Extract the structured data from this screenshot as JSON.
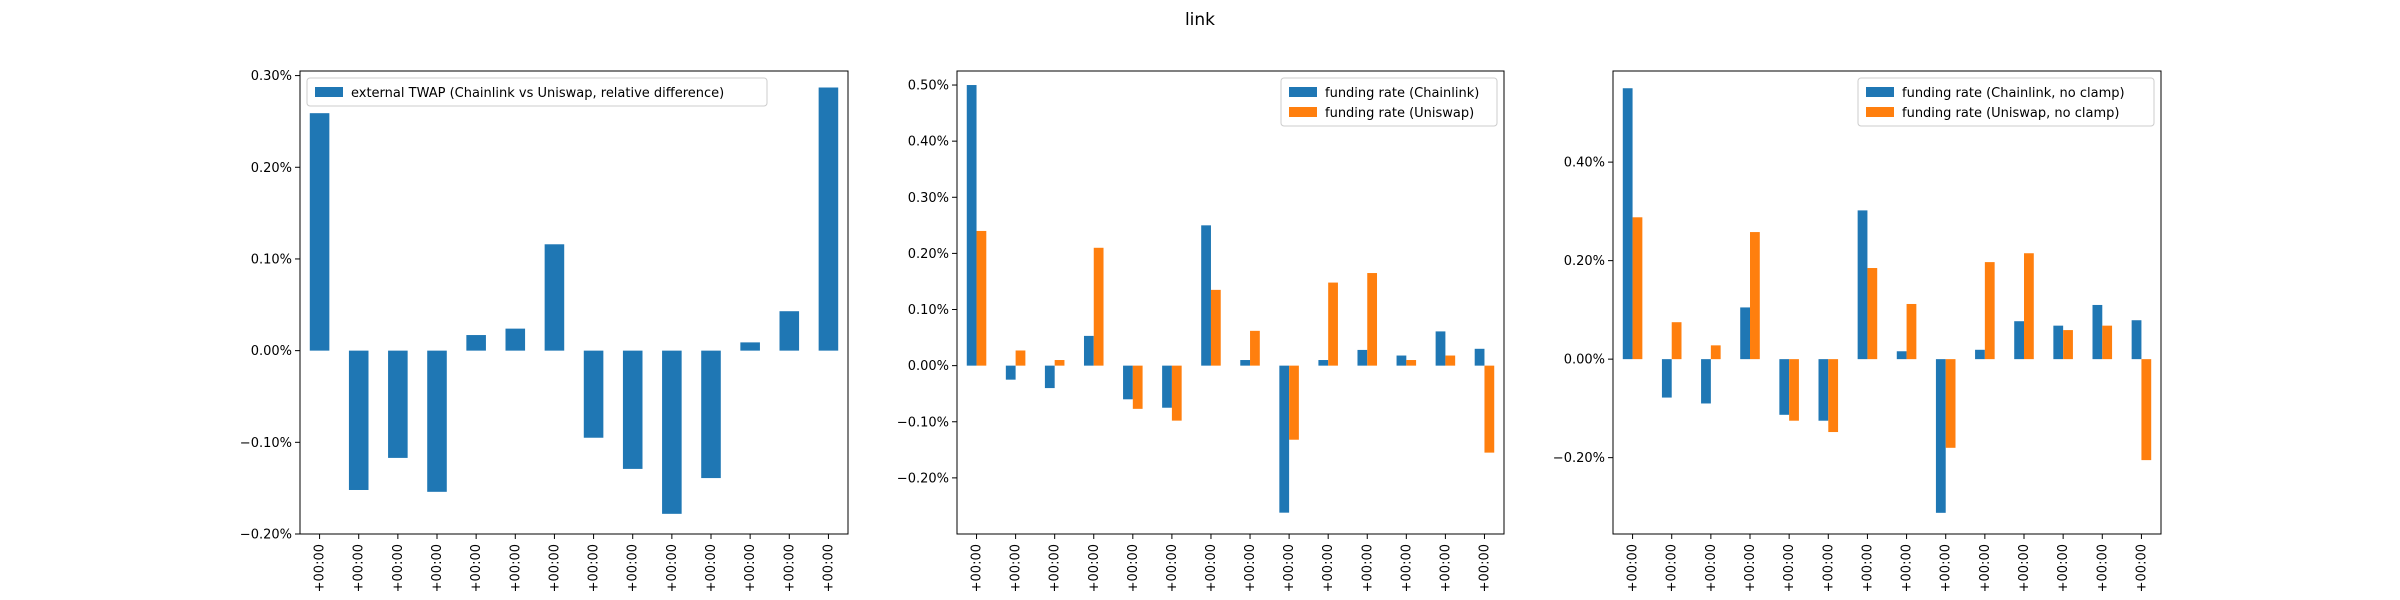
{
  "figure": {
    "title": "link"
  },
  "colors": {
    "blue": "#1f77b4",
    "orange": "#ff7f0e"
  },
  "chart_data": [
    {
      "type": "bar",
      "categories": [
        "+00:00",
        "+00:00",
        "+00:00",
        "+00:00",
        "+00:00",
        "+00:00",
        "+00:00",
        "+00:00",
        "+00:00",
        "+00:00",
        "+00:00",
        "+00:00",
        "+00:00",
        "+00:00"
      ],
      "series": [
        {
          "name": "external TWAP (Chainlink vs Uniswap, relative difference)",
          "color": "#1f77b4",
          "values": [
            0.00259,
            -0.00152,
            -0.00117,
            -0.00154,
            0.00017,
            0.00024,
            0.00116,
            -0.00095,
            -0.00129,
            -0.00178,
            -0.00139,
            9e-05,
            0.00043,
            0.00287
          ]
        }
      ],
      "yticks": [
        -0.002,
        -0.001,
        0.0,
        0.001,
        0.002,
        0.003
      ],
      "ytick_labels": [
        "−0.20%",
        "−0.10%",
        "0.00%",
        "0.10%",
        "0.20%",
        "0.30%"
      ],
      "ylim": [
        -0.002,
        0.00305
      ],
      "legend_position": "top-left"
    },
    {
      "type": "bar",
      "categories": [
        "+00:00",
        "+00:00",
        "+00:00",
        "+00:00",
        "+00:00",
        "+00:00",
        "+00:00",
        "+00:00",
        "+00:00",
        "+00:00",
        "+00:00",
        "+00:00",
        "+00:00",
        "+00:00"
      ],
      "series": [
        {
          "name": "funding rate (Chainlink)",
          "color": "#1f77b4",
          "values": [
            0.005,
            -0.00025,
            -0.0004,
            0.00053,
            -0.0006,
            -0.00075,
            0.0025,
            0.0001,
            -0.00262,
            0.0001,
            0.00028,
            0.00018,
            0.00061,
            0.0003
          ]
        },
        {
          "name": "funding rate (Uniswap)",
          "color": "#ff7f0e",
          "values": [
            0.0024,
            0.00027,
            0.0001,
            0.0021,
            -0.00077,
            -0.00098,
            0.00135,
            0.00062,
            -0.00132,
            0.00148,
            0.00165,
            0.0001,
            0.00018,
            -0.00155
          ]
        }
      ],
      "yticks": [
        -0.002,
        -0.001,
        0.0,
        0.001,
        0.002,
        0.003,
        0.004,
        0.005
      ],
      "ytick_labels": [
        "−0.20%",
        "−0.10%",
        "0.00%",
        "0.10%",
        "0.20%",
        "0.30%",
        "0.40%",
        "0.50%"
      ],
      "ylim": [
        -0.003,
        0.00525
      ],
      "legend_position": "top-right"
    },
    {
      "type": "bar",
      "categories": [
        "+00:00",
        "+00:00",
        "+00:00",
        "+00:00",
        "+00:00",
        "+00:00",
        "+00:00",
        "+00:00",
        "+00:00",
        "+00:00",
        "+00:00",
        "+00:00",
        "+00:00",
        "+00:00"
      ],
      "series": [
        {
          "name": "funding rate (Chainlink, no clamp)",
          "color": "#1f77b4",
          "values": [
            0.0055,
            -0.00078,
            -0.0009,
            0.00105,
            -0.00113,
            -0.00125,
            0.00302,
            0.00016,
            -0.00312,
            0.00019,
            0.00077,
            0.00068,
            0.0011,
            0.00079
          ]
        },
        {
          "name": "funding rate (Uniswap, no clamp)",
          "color": "#ff7f0e",
          "values": [
            0.00288,
            0.00075,
            0.00028,
            0.00258,
            -0.00125,
            -0.00148,
            0.00185,
            0.00112,
            -0.0018,
            0.00197,
            0.00215,
            0.00059,
            0.00068,
            -0.00205
          ]
        }
      ],
      "yticks": [
        -0.002,
        0.0,
        0.002,
        0.004
      ],
      "ytick_labels": [
        "−0.20%",
        "0.00%",
        "0.20%",
        "0.40%"
      ],
      "ylim": [
        -0.00355,
        0.00585
      ],
      "legend_position": "top-right"
    }
  ]
}
